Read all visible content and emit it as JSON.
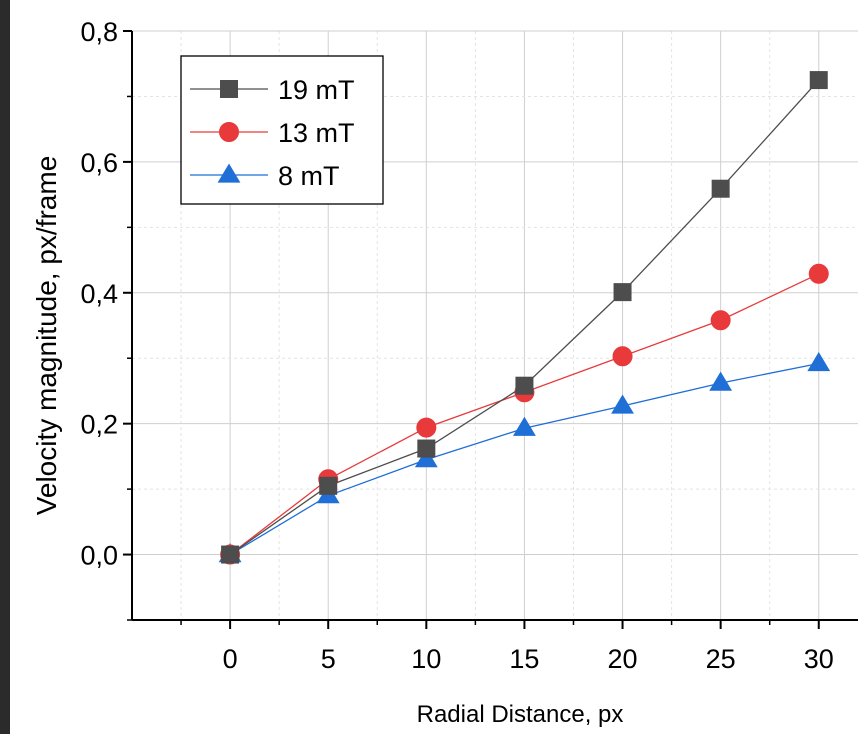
{
  "chart_data": {
    "type": "line",
    "xlabel": "Radial Distance, px",
    "ylabel": "Velocity magnitude, px/frame",
    "xlim": [
      -5,
      32
    ],
    "ylim": [
      -0.1,
      0.8
    ],
    "x_ticks": [
      0,
      5,
      10,
      15,
      20,
      25,
      30
    ],
    "x_tick_labels": [
      "0",
      "5",
      "10",
      "15",
      "20",
      "25",
      "30"
    ],
    "y_ticks": [
      0.0,
      0.2,
      0.4,
      0.6,
      0.8
    ],
    "y_tick_labels": [
      "0,0",
      "0,2",
      "0,4",
      "0,6",
      "0,8"
    ],
    "grid": true,
    "legend_position": "top-left",
    "x": [
      0,
      5,
      10,
      15,
      20,
      25,
      30
    ],
    "series": [
      {
        "name": "19 mT",
        "color": "#4d4d4d",
        "marker": "square",
        "values": [
          0.0,
          0.105,
          0.162,
          0.258,
          0.401,
          0.559,
          0.725
        ]
      },
      {
        "name": "13 mT",
        "color": "#e8393b",
        "marker": "circle",
        "values": [
          0.0,
          0.115,
          0.194,
          0.248,
          0.303,
          0.358,
          0.429
        ]
      },
      {
        "name": "8 mT",
        "color": "#1f6fd6",
        "marker": "triangle",
        "values": [
          0.0,
          0.09,
          0.145,
          0.193,
          0.227,
          0.262,
          0.292
        ]
      }
    ]
  }
}
